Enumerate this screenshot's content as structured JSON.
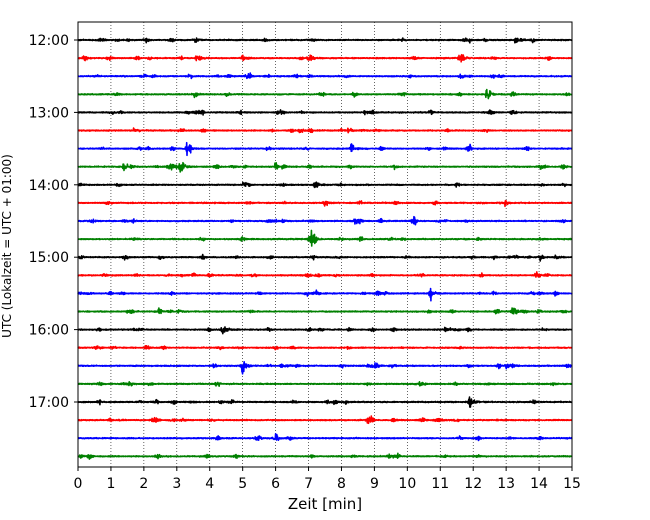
{
  "chart_data": {
    "type": "line",
    "subtype": "seismogram-helicorder",
    "xlabel": "Zeit  [min]",
    "ylabel": "UTC (Lokalzeit = UTC + 01:00)",
    "xlim": [
      0,
      15
    ],
    "x_ticks": [
      0,
      1,
      2,
      3,
      4,
      5,
      6,
      7,
      8,
      9,
      10,
      11,
      12,
      13,
      14,
      15
    ],
    "x_tick_labels": [
      "0",
      "1",
      "2",
      "3",
      "4",
      "5",
      "6",
      "7",
      "8",
      "9",
      "10",
      "11",
      "12",
      "13",
      "14",
      "15"
    ],
    "y_tick_labels": [
      "12:00",
      "13:00",
      "14:00",
      "15:00",
      "16:00",
      "17:00"
    ],
    "y_tick_rows": [
      0,
      4,
      8,
      12,
      16,
      20
    ],
    "trace_interval_min": 15,
    "row_count": 24,
    "grid": {
      "x": true,
      "style": "dotted"
    },
    "trace_colors": [
      "#000000",
      "#ff0000",
      "#0000ff",
      "#008000"
    ],
    "rows": [
      {
        "start": "12:00",
        "events": [
          {
            "t": 13.3,
            "amp": 1.0
          }
        ]
      },
      {
        "start": "12:15",
        "events": [
          {
            "t": 3.6,
            "amp": 0.9
          },
          {
            "t": 5.0,
            "amp": 0.8
          },
          {
            "t": 7.0,
            "amp": 1.0
          },
          {
            "t": 11.6,
            "amp": 1.6
          }
        ]
      },
      {
        "start": "12:30",
        "events": [
          {
            "t": 11.6,
            "amp": 0.6
          }
        ]
      },
      {
        "start": "12:45",
        "events": [
          {
            "t": 12.4,
            "amp": 1.6
          }
        ]
      },
      {
        "start": "13:00",
        "events": [
          {
            "t": 8.7,
            "amp": 0.5
          }
        ]
      },
      {
        "start": "13:15",
        "events": [
          {
            "t": 1.7,
            "amp": 0.6
          },
          {
            "t": 8.2,
            "amp": 0.5
          }
        ]
      },
      {
        "start": "13:30",
        "events": [
          {
            "t": 3.3,
            "amp": 1.2
          },
          {
            "t": 8.3,
            "amp": 1.2
          }
        ]
      },
      {
        "start": "13:45",
        "events": [
          {
            "t": 1.4,
            "amp": 1.0
          },
          {
            "t": 3.1,
            "amp": 1.0
          },
          {
            "t": 6.0,
            "amp": 0.9
          }
        ]
      },
      {
        "start": "14:00",
        "events": [
          {
            "t": 7.2,
            "amp": 0.9
          }
        ]
      },
      {
        "start": "14:15",
        "events": [
          {
            "t": 7.5,
            "amp": 0.6
          }
        ]
      },
      {
        "start": "14:30",
        "events": [
          {
            "t": 8.4,
            "amp": 0.7
          }
        ]
      },
      {
        "start": "14:45",
        "events": [
          {
            "t": 7.1,
            "amp": 1.6
          }
        ]
      },
      {
        "start": "15:00",
        "events": [
          {
            "t": 14.5,
            "amp": 0.5
          }
        ]
      },
      {
        "start": "15:15",
        "events": []
      },
      {
        "start": "15:30",
        "events": [
          {
            "t": 10.7,
            "amp": 1.3
          }
        ]
      },
      {
        "start": "15:45",
        "events": [
          {
            "t": 13.2,
            "amp": 1.4
          }
        ]
      },
      {
        "start": "16:00",
        "events": [
          {
            "t": 4.4,
            "amp": 1.3
          }
        ]
      },
      {
        "start": "16:15",
        "events": []
      },
      {
        "start": "16:30",
        "events": [
          {
            "t": 5.0,
            "amp": 1.5
          },
          {
            "t": 13.0,
            "amp": 0.7
          }
        ]
      },
      {
        "start": "16:45",
        "events": []
      },
      {
        "start": "17:00",
        "events": [
          {
            "t": 11.9,
            "amp": 1.3
          }
        ]
      },
      {
        "start": "17:15",
        "events": []
      },
      {
        "start": "17:30",
        "events": []
      },
      {
        "start": "17:45",
        "events": []
      }
    ]
  }
}
